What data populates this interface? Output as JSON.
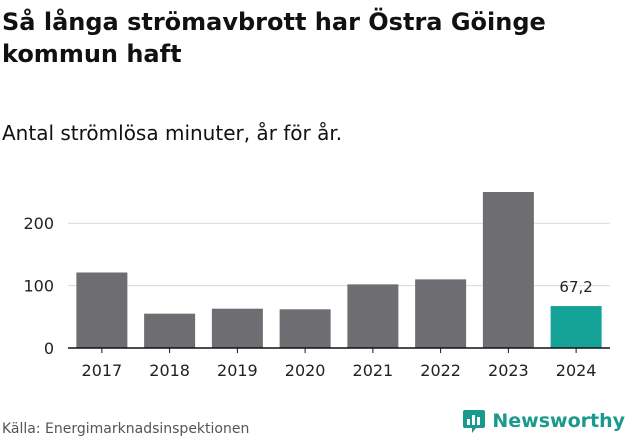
{
  "header": {
    "title": "Så långa strömavbrott har Östra Göinge kommun haft",
    "subtitle": "Antal strömlösa minuter, år för år."
  },
  "footer": {
    "source": "Källa: Energimarknadsinspektionen",
    "brand": "Newsworthy"
  },
  "colors": {
    "bar": "#6e6d71",
    "highlight": "#14a396",
    "grid": "#d9d9d9",
    "axis": "#111111",
    "brand": "#1a9a8c"
  },
  "chart_data": {
    "type": "bar",
    "title": "Så långa strömavbrott har Östra Göinge kommun haft",
    "subtitle": "Antal strömlösa minuter, år för år.",
    "categories": [
      "2017",
      "2018",
      "2019",
      "2020",
      "2021",
      "2022",
      "2023",
      "2024"
    ],
    "values": [
      121,
      55,
      63,
      62,
      102,
      110,
      250,
      67.2
    ],
    "highlight_index": 7,
    "data_labels": [
      {
        "index": 7,
        "text": "67,2"
      }
    ],
    "yticks": [
      0,
      100,
      200
    ],
    "ylim": [
      0,
      250
    ],
    "xlabel": "",
    "ylabel": "",
    "grid": true
  }
}
